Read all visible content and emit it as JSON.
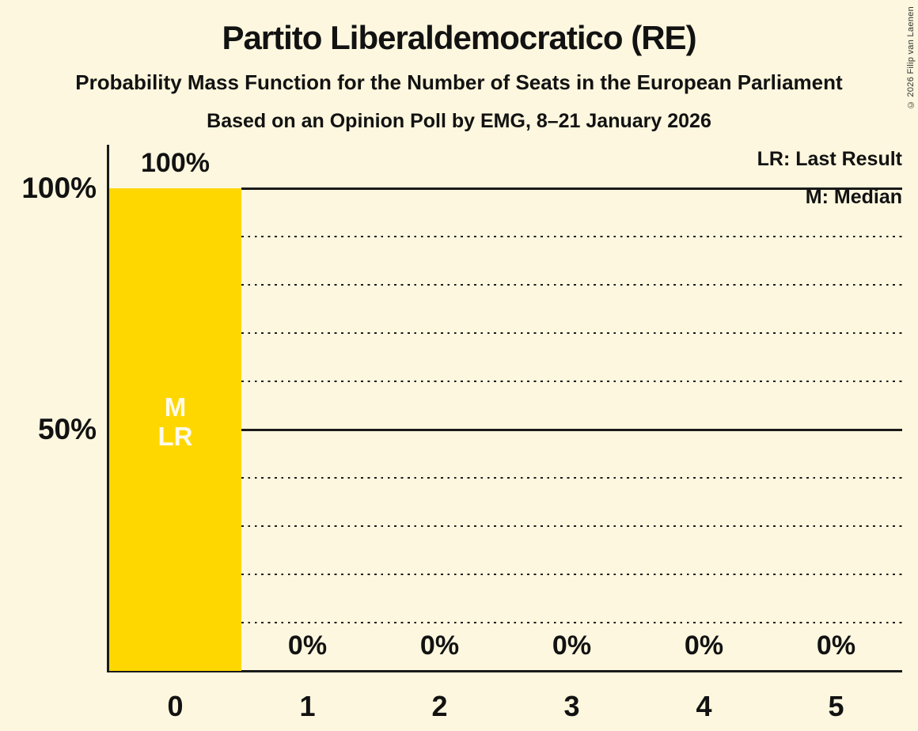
{
  "title": "Partito Liberaldemocratico (RE)",
  "subtitle": "Probability Mass Function for the Number of Seats in the European Parliament",
  "poll_info": "Based on an Opinion Poll by EMG, 8–21 January 2026",
  "copyright": "© 2026 Filip van Laenen",
  "legend": {
    "last_result": "LR: Last Result",
    "median": "M: Median"
  },
  "colors": {
    "background": "#FCF7DE",
    "bar": "#FFD700",
    "text": "#121212",
    "line": "#1A1A1A",
    "bar_label_text": "#FDFAEC",
    "copyright_text": "#333333"
  },
  "chart_data": {
    "type": "bar",
    "title": "Partito Liberaldemocratico (RE)",
    "xlabel": "",
    "ylabel": "",
    "categories": [
      "0",
      "1",
      "2",
      "3",
      "4",
      "5"
    ],
    "values": [
      100,
      0,
      0,
      0,
      0,
      0
    ],
    "value_labels": [
      "100%",
      "0%",
      "0%",
      "0%",
      "0%",
      "0%"
    ],
    "bar_annotations": [
      [
        "M",
        "LR"
      ],
      [],
      [],
      [],
      [],
      []
    ],
    "median_seats": 0,
    "last_result_seats": 0,
    "ylim": [
      0,
      100
    ],
    "yticks": [
      {
        "value": 100,
        "label": "100%"
      },
      {
        "value": 50,
        "label": "50%"
      }
    ],
    "gridlines": {
      "dotted_step": 10,
      "solid_at": [
        50,
        100
      ]
    },
    "legend_position": "top-right",
    "grid": "horizontal-only"
  }
}
